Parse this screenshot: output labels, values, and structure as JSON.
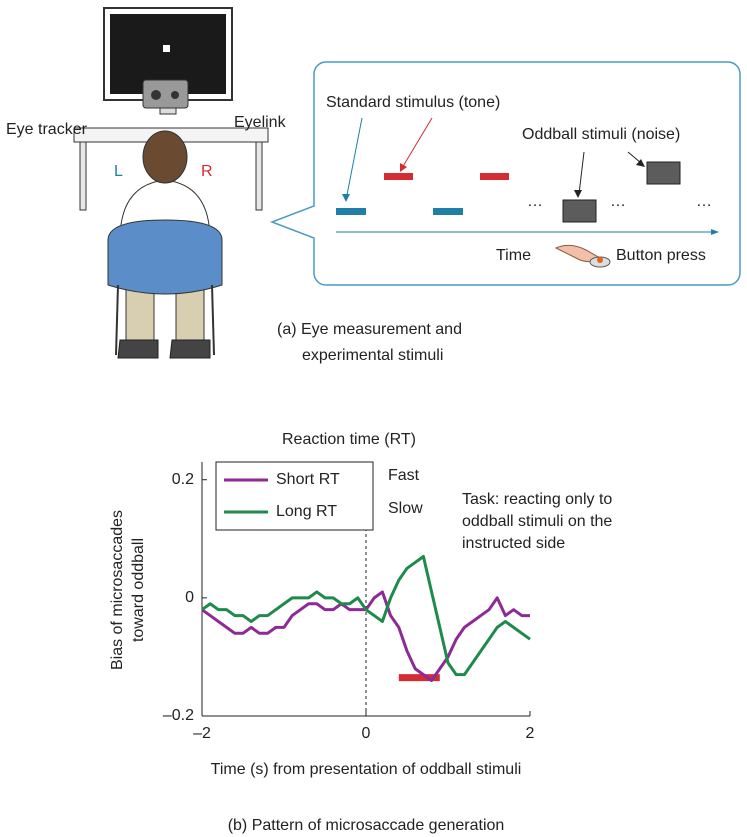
{
  "illustration": {
    "eye_tracker": "Eye tracker",
    "eyelink": "Eyelink",
    "left": "L",
    "right": "R",
    "standard": "Standard stimulus (tone)",
    "oddball": "Oddball stimuli (noise)",
    "ellipses": [
      "…",
      "…",
      "…"
    ],
    "time": "Time",
    "button": "Button press",
    "caption": [
      "(a) Eye measurement and",
      "experimental stimuli"
    ]
  },
  "chart_data": {
    "type": "line",
    "title": "Reaction time (RT)",
    "fast": "Fast",
    "slow": "Slow",
    "task": [
      "Task: reacting only to",
      "oddball stimuli on the",
      "instructed side"
    ],
    "ylabel": [
      "Bias of microsaccades",
      "toward oddball"
    ],
    "xlabel": "Time (s) from presentation of oddball stimuli",
    "caption": "(b) Pattern of microsaccade generation",
    "x": [
      -2,
      -1.9,
      -1.8,
      -1.7,
      -1.6,
      -1.5,
      -1.4,
      -1.3,
      -1.2,
      -1.1,
      -1,
      -0.9,
      -0.8,
      -0.7,
      -0.6,
      -0.5,
      -0.4,
      -0.3,
      -0.2,
      -0.1,
      0,
      0.1,
      0.2,
      0.3,
      0.4,
      0.5,
      0.6,
      0.7,
      0.8,
      0.9,
      1,
      1.1,
      1.2,
      1.3,
      1.4,
      1.5,
      1.6,
      1.7,
      1.8,
      1.9,
      2
    ],
    "series": [
      {
        "name": "Short RT",
        "color": "#8e2a96",
        "values": [
          -0.02,
          -0.03,
          -0.04,
          -0.05,
          -0.06,
          -0.06,
          -0.05,
          -0.06,
          -0.06,
          -0.05,
          -0.05,
          -0.03,
          -0.02,
          -0.01,
          -0.01,
          -0.02,
          -0.02,
          -0.01,
          -0.02,
          -0.02,
          -0.02,
          0,
          0.01,
          -0.03,
          -0.05,
          -0.09,
          -0.12,
          -0.13,
          -0.14,
          -0.12,
          -0.1,
          -0.07,
          -0.05,
          -0.04,
          -0.03,
          -0.02,
          0,
          -0.03,
          -0.02,
          -0.03,
          -0.03
        ]
      },
      {
        "name": "Long RT",
        "color": "#1f8a4c",
        "values": [
          -0.02,
          -0.01,
          -0.02,
          -0.02,
          -0.03,
          -0.03,
          -0.04,
          -0.03,
          -0.03,
          -0.02,
          -0.01,
          0,
          0,
          0,
          0.01,
          0,
          0,
          -0.01,
          -0.01,
          0,
          -0.02,
          -0.03,
          -0.04,
          0,
          0.03,
          0.05,
          0.06,
          0.07,
          0.01,
          -0.05,
          -0.11,
          -0.13,
          -0.13,
          -0.11,
          -0.09,
          -0.07,
          -0.05,
          -0.04,
          -0.05,
          -0.06,
          -0.07
        ]
      }
    ],
    "xlim": [
      -2,
      2
    ],
    "ylim": [
      -0.2,
      0.23
    ],
    "xticks": [
      {
        "value": -2,
        "label": "–2"
      },
      0,
      2
    ],
    "yticks": [
      {
        "value": -0.2,
        "label": "–0.2"
      },
      0,
      0.2
    ],
    "vline": 0,
    "significance": {
      "x": [
        0.4,
        0.9
      ],
      "y": -0.135,
      "color": "#d52b32"
    },
    "legend": "upper left"
  }
}
